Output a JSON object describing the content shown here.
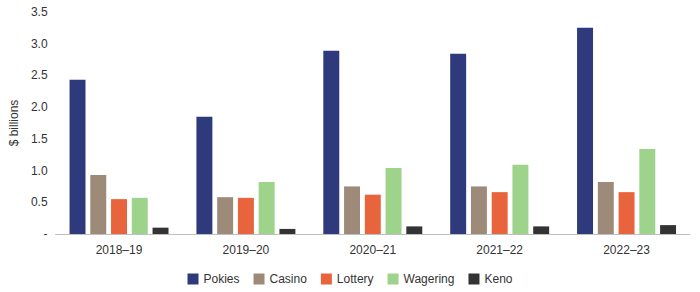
{
  "chart_data": {
    "type": "bar",
    "y_label": "$ billions",
    "categories": [
      "2018–19",
      "2019–20",
      "2020–21",
      "2021–22",
      "2022–23"
    ],
    "series": [
      {
        "name": "Pokies",
        "color": "#2e3a7c",
        "values": [
          2.43,
          1.85,
          2.89,
          2.84,
          3.25
        ]
      },
      {
        "name": "Casino",
        "color": "#9e8a78",
        "values": [
          0.93,
          0.58,
          0.75,
          0.75,
          0.82
        ]
      },
      {
        "name": "Lottery",
        "color": "#e8643c",
        "values": [
          0.55,
          0.57,
          0.62,
          0.66,
          0.66
        ]
      },
      {
        "name": "Wagering",
        "color": "#9ed38c",
        "values": [
          0.57,
          0.82,
          1.04,
          1.09,
          1.34
        ]
      },
      {
        "name": "Keno",
        "color": "#333333",
        "values": [
          0.1,
          0.08,
          0.12,
          0.12,
          0.14
        ]
      }
    ],
    "ylim": [
      0,
      3.5
    ],
    "yticks": [
      {
        "value": 0,
        "label": "-"
      },
      {
        "value": 0.5,
        "label": "0.5"
      },
      {
        "value": 1,
        "label": "1.0"
      },
      {
        "value": 1.5,
        "label": "1.5"
      },
      {
        "value": 2,
        "label": "2.0"
      },
      {
        "value": 2.5,
        "label": "2.5"
      },
      {
        "value": 3,
        "label": "3.0"
      },
      3.5
    ],
    "grid": false,
    "legend": "bottom"
  }
}
